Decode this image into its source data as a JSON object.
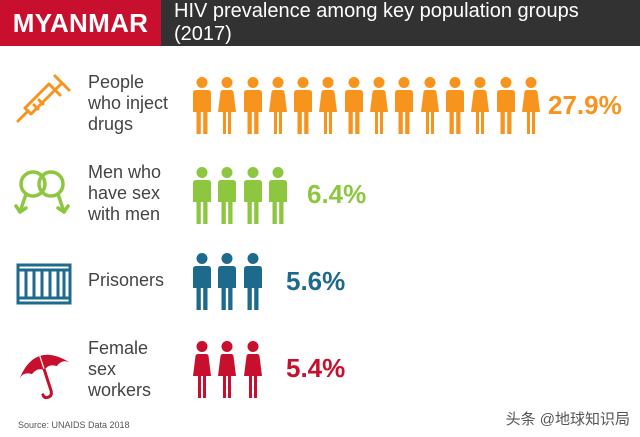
{
  "header": {
    "country": "MYANMAR",
    "title": "HIV prevalence among key population groups (2017)"
  },
  "chart_data": {
    "type": "pictogram",
    "title": "HIV prevalence among key population groups (2017)",
    "categories": [
      "People who inject drugs",
      "Men who have sex with men",
      "Prisoners",
      "Female sex workers"
    ],
    "values": [
      27.9,
      6.4,
      5.6,
      5.4
    ],
    "unit": "%",
    "icon_counts": [
      14,
      4,
      3,
      3
    ],
    "groups": [
      {
        "label_lines": [
          "People",
          "who inject",
          "drugs"
        ],
        "value_label": "27.9%",
        "icon_count": 14,
        "figure": "mixed",
        "color": "#f7941d",
        "icon": "syringe-icon"
      },
      {
        "label_lines": [
          "Men who",
          "have sex",
          "with men"
        ],
        "value_label": "6.4%",
        "icon_count": 4,
        "figure": "male",
        "color": "#8dc63f",
        "icon": "male-symbols-icon"
      },
      {
        "label_lines": [
          "Prisoners"
        ],
        "value_label": "5.6%",
        "icon_count": 3,
        "figure": "male",
        "color": "#1e6a8d",
        "icon": "prison-bars-icon"
      },
      {
        "label_lines": [
          "Female",
          "sex",
          "workers"
        ],
        "value_label": "5.4%",
        "icon_count": 3,
        "figure": "female",
        "color": "#c8102e",
        "icon": "umbrella-icon"
      }
    ]
  },
  "source": "Source: UNAIDS Data 2018",
  "watermark": "头条 @地球知识局"
}
